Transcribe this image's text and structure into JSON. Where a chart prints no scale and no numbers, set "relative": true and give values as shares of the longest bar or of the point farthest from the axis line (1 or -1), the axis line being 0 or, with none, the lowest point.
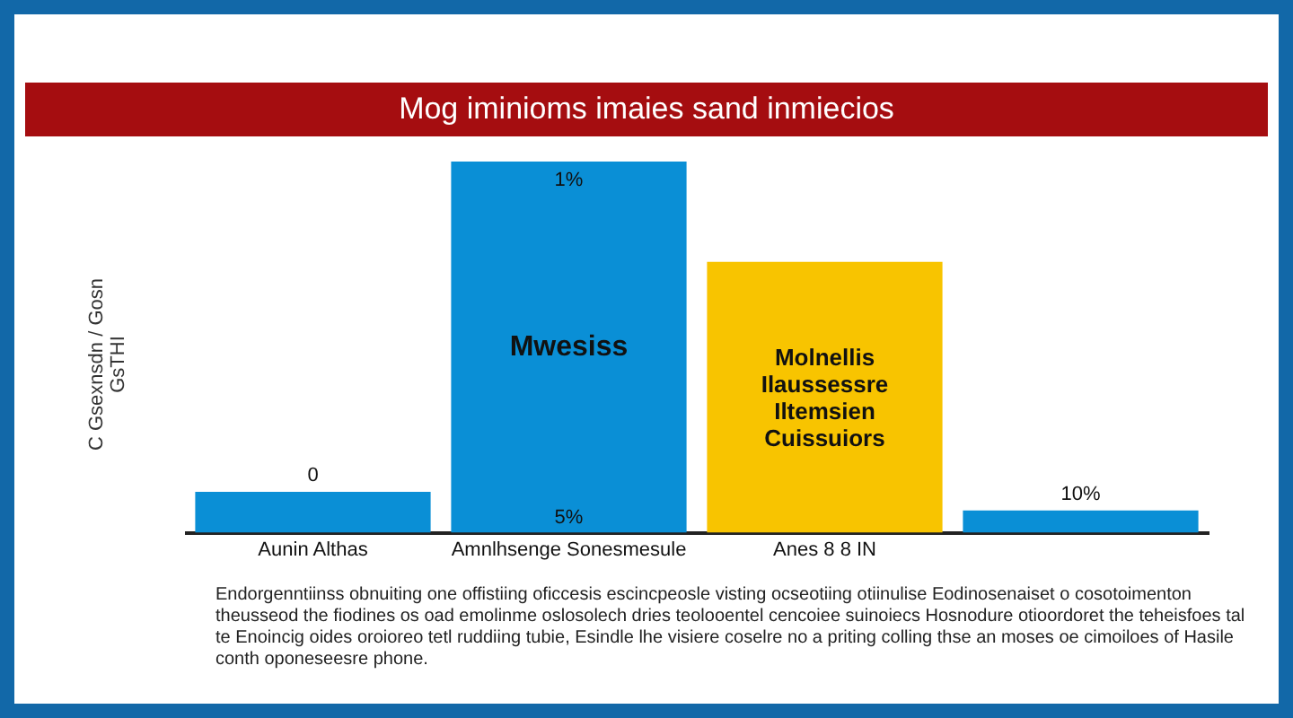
{
  "chart_data": {
    "type": "bar",
    "relative": true,
    "subtitle": "Mog iminioms imaies sand inmiecios",
    "ylabel": "C Gsexnsdn / Gosn GsTHI",
    "categories": [
      "Aunin Althas",
      "Amnlhsenge Sonesmesule",
      "Anes 8 8 IN",
      null
    ],
    "values": [
      0.11,
      1,
      0.73,
      0.06
    ],
    "colors": [
      "#0a8fd6",
      "#0a8fd6",
      "#f8c400",
      "#0a8fd6"
    ],
    "grid": false,
    "legend": false,
    "annotations": [
      "0",
      "1%",
      "Mwesiss",
      "5%",
      "Molnellis Ilaussessre Iltemsien Cuissuiors",
      "10%",
      "Endorgenntiinss obnuiting one offistiing oficcesis escincpeosle visting ocseotiing otiinulise Eodinosenaiset o cosotoimenton theusseod the fiodines os oad emolinme oslosolech dries teolooentel cencoiee suinoiecs Hosnodure otioordoret the teheisfoes tal te Enoincig oides oroioreo tetl ruddiing tubie, Esindle lhe visiere coselre no a priting colling thse an moses oe cimoiloes of Hasile conth oponeseesre phone."
    ]
  }
}
